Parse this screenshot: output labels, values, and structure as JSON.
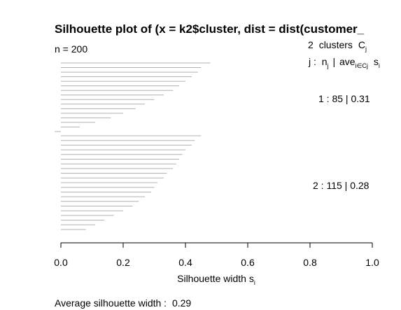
{
  "chart_data": {
    "type": "bar",
    "orientation": "horizontal",
    "title": "Silhouette plot of (x = k2$cluster, dist = dist(customer_",
    "n_label": "n = 200",
    "clusters_header": {
      "count": "2",
      "word": "clusters",
      "symbol": "C",
      "symbol_sub": "j"
    },
    "column_header": {
      "j": "j :",
      "n": "n",
      "n_sub": "j",
      "sep": "|",
      "ave": "ave",
      "ave_sub": "i∈Cj",
      "s": "s",
      "s_sub": "i"
    },
    "xlabel": "Silhouette width s",
    "xlabel_sub": "i",
    "xlim": [
      0,
      1
    ],
    "xticks": [
      "0.0",
      "0.2",
      "0.4",
      "0.6",
      "0.8",
      "1.0"
    ],
    "average_label": "Average silhouette width :",
    "average_value": "0.29",
    "bar_color": "#b0b0b0",
    "clusters": [
      {
        "id": 1,
        "n": 85,
        "avg_width": 0.31,
        "label": "1 :   85  |  0.31",
        "values_desc": [
          0.48,
          0.45,
          0.44,
          0.42,
          0.4,
          0.38,
          0.36,
          0.33,
          0.3,
          0.27,
          0.24,
          0.2,
          0.16,
          0.11,
          0.06,
          -0.02
        ]
      },
      {
        "id": 2,
        "n": 115,
        "avg_width": 0.28,
        "label": "2 :   115  |  0.28",
        "values_desc": [
          0.45,
          0.43,
          0.42,
          0.4,
          0.39,
          0.38,
          0.37,
          0.36,
          0.34,
          0.33,
          0.31,
          0.3,
          0.29,
          0.27,
          0.25,
          0.23,
          0.2,
          0.17,
          0.14,
          0.11,
          0.08
        ]
      }
    ]
  }
}
